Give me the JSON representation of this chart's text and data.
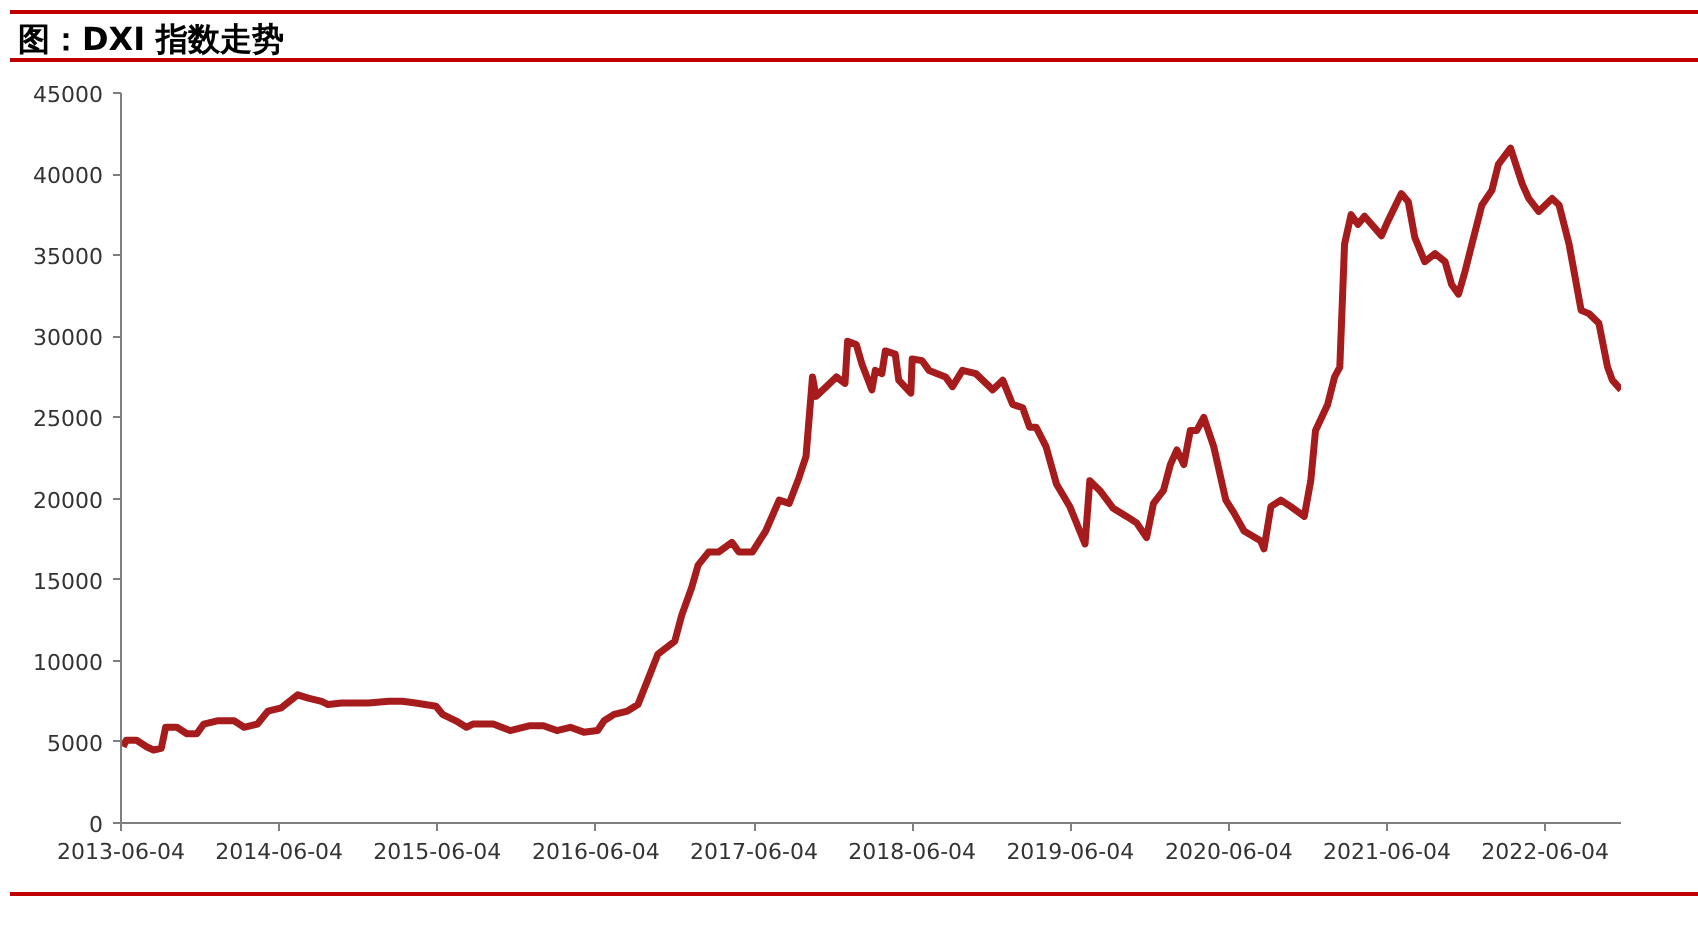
{
  "chart_data": {
    "type": "line",
    "title": "图：DXI 指数走势",
    "x": [
      "2013-06-09",
      "2013-06-16",
      "2013-07-10",
      "2013-08-02",
      "2013-08-18",
      "2013-09-05",
      "2013-09-15",
      "2013-10-11",
      "2013-11-03",
      "2013-11-26",
      "2013-12-12",
      "2014-01-12",
      "2014-02-20",
      "2014-03-15",
      "2014-04-15",
      "2014-05-09",
      "2014-06-09",
      "2014-07-17",
      "2014-08-10",
      "2014-09-10",
      "2014-09-25",
      "2014-10-26",
      "2014-12-27",
      "2015-02-12",
      "2015-03-15",
      "2015-04-15",
      "2015-06-01",
      "2015-06-16",
      "2015-07-17",
      "2015-08-10",
      "2015-08-25",
      "2015-10-11",
      "2015-11-19",
      "2016-01-04",
      "2016-02-04",
      "2016-03-06",
      "2016-04-06",
      "2016-05-07",
      "2016-06-08",
      "2016-06-23",
      "2016-07-16",
      "2016-08-16",
      "2016-09-09",
      "2016-09-24",
      "2016-10-25",
      "2016-12-03",
      "2016-12-19",
      "2017-01-11",
      "2017-01-26",
      "2017-02-19",
      "2017-03-14",
      "2017-04-14",
      "2017-04-30",
      "2017-05-31",
      "2017-07-01",
      "2017-08-01",
      "2017-08-24",
      "2017-09-16",
      "2017-10-02",
      "2017-10-17",
      "2017-10-25",
      "2017-11-18",
      "2017-12-11",
      "2017-12-31",
      "2018-01-06",
      "2018-01-26",
      "2018-02-08",
      "2018-03-03",
      "2018-03-11",
      "2018-03-26",
      "2018-04-03",
      "2018-04-26",
      "2018-05-04",
      "2018-06-01",
      "2018-06-04",
      "2018-06-27",
      "2018-07-13",
      "2018-08-20",
      "2018-09-05",
      "2018-09-28",
      "2018-10-29",
      "2018-12-07",
      "2018-12-30",
      "2019-01-22",
      "2019-02-14",
      "2019-03-02",
      "2019-03-17",
      "2019-04-09",
      "2019-05-03",
      "2019-06-03",
      "2019-07-08",
      "2019-07-19",
      "2019-08-11",
      "2019-09-11",
      "2019-10-12",
      "2019-11-04",
      "2019-11-27",
      "2019-12-13",
      "2020-01-05",
      "2020-01-21",
      "2020-02-05",
      "2020-02-21",
      "2020-03-07",
      "2020-03-22",
      "2020-04-07",
      "2020-04-30",
      "2020-05-28",
      "2020-06-16",
      "2020-07-09",
      "2020-08-16",
      "2020-08-24",
      "2020-09-09",
      "2020-10-02",
      "2020-10-25",
      "2020-11-25",
      "2020-12-10",
      "2020-12-21",
      "2021-01-18",
      "2021-02-03",
      "2021-02-15",
      "2021-02-26",
      "2021-03-13",
      "2021-03-29",
      "2021-04-13",
      "2021-05-06",
      "2021-05-22",
      "2021-06-06",
      "2021-07-07",
      "2021-07-23",
      "2021-08-07",
      "2021-08-30",
      "2021-09-23",
      "2021-10-16",
      "2021-10-31",
      "2021-11-16",
      "2021-12-01",
      "2021-12-17",
      "2022-01-09",
      "2022-02-01",
      "2022-02-16",
      "2022-03-16",
      "2022-04-12",
      "2022-04-27",
      "2022-05-20",
      "2022-06-20",
      "2022-07-06",
      "2022-07-29",
      "2022-08-26",
      "2022-09-13",
      "2022-10-06",
      "2022-10-26",
      "2022-11-06",
      "2022-11-26"
    ],
    "series": [
      {
        "color": "#a61c1c",
        "values": [
          4700,
          5100,
          5100,
          4700,
          4500,
          4600,
          5900,
          5900,
          5500,
          5500,
          6100,
          6300,
          6300,
          5900,
          6100,
          6900,
          7100,
          7900,
          7700,
          7500,
          7300,
          7400,
          7400,
          7500,
          7500,
          7400,
          7200,
          6700,
          6300,
          5900,
          6100,
          6100,
          5700,
          6000,
          6000,
          5700,
          5900,
          5600,
          5700,
          6300,
          6700,
          6900,
          7300,
          8300,
          10400,
          11200,
          12800,
          14500,
          15900,
          16700,
          16700,
          17300,
          16700,
          16700,
          18000,
          19900,
          19700,
          21300,
          22600,
          27500,
          26300,
          26900,
          27500,
          27100,
          29700,
          29500,
          28300,
          26700,
          27900,
          27700,
          29100,
          28900,
          27300,
          26500,
          28600,
          28500,
          27900,
          27500,
          26900,
          27900,
          27700,
          26700,
          27300,
          25800,
          25600,
          24400,
          24400,
          23200,
          20900,
          19500,
          17200,
          21100,
          20500,
          19400,
          18900,
          18500,
          17600,
          19700,
          20500,
          22100,
          23000,
          22100,
          24200,
          24200,
          25000,
          23200,
          19900,
          19100,
          18000,
          17400,
          16900,
          19500,
          19900,
          19500,
          18900,
          21100,
          24200,
          25800,
          27500,
          28100,
          35700,
          37500,
          36900,
          37400,
          36700,
          36200,
          37100,
          38800,
          38300,
          36100,
          34600,
          35100,
          34600,
          33200,
          32600,
          34000,
          35700,
          38100,
          39000,
          40600,
          41600,
          39400,
          38500,
          37700,
          38500,
          38100,
          35700,
          31600,
          31400,
          30800,
          28100,
          27300,
          26700
        ]
      }
    ],
    "xlim": [
      "2013-06-04",
      "2022-11-26"
    ],
    "xticks": [
      "2013-06-04",
      "2014-06-04",
      "2015-06-04",
      "2016-06-04",
      "2017-06-04",
      "2018-06-04",
      "2019-06-04",
      "2020-06-04",
      "2021-06-04",
      "2022-06-04"
    ],
    "ylim": [
      0,
      45000
    ],
    "yticks": [
      0,
      5000,
      10000,
      15000,
      20000,
      25000,
      30000,
      35000,
      40000,
      45000
    ],
    "grid": false,
    "marker": "none",
    "line_style": "solid"
  }
}
